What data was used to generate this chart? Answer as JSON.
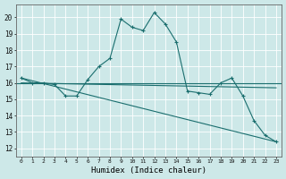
{
  "xlabel": "Humidex (Indice chaleur)",
  "xlim": [
    -0.5,
    23.5
  ],
  "ylim": [
    11.5,
    20.8
  ],
  "yticks": [
    12,
    13,
    14,
    15,
    16,
    17,
    18,
    19,
    20
  ],
  "xticks": [
    0,
    1,
    2,
    3,
    4,
    5,
    6,
    7,
    8,
    9,
    10,
    11,
    12,
    13,
    14,
    15,
    16,
    17,
    18,
    19,
    20,
    21,
    22,
    23
  ],
  "background_color": "#cde8e8",
  "grid_color": "#b0d4d4",
  "line_color": "#1a6e6e",
  "main_x": [
    0,
    1,
    2,
    3,
    4,
    5,
    6,
    7,
    8,
    9,
    10,
    11,
    12,
    13,
    14,
    15,
    16,
    17,
    18,
    19,
    20,
    21,
    22,
    23
  ],
  "main_y": [
    16.3,
    16.0,
    16.0,
    15.9,
    15.2,
    15.2,
    16.2,
    17.0,
    17.5,
    19.9,
    19.4,
    19.2,
    20.3,
    19.6,
    18.5,
    15.5,
    15.4,
    15.3,
    16.0,
    16.3,
    15.2,
    13.7,
    12.8,
    12.4
  ],
  "horiz_line_y": 16.0,
  "diag_line_x": [
    0,
    23
  ],
  "diag_line_y": [
    16.3,
    12.4
  ],
  "extra_line_x": [
    0,
    23
  ],
  "extra_line_y": [
    16.0,
    15.7
  ]
}
